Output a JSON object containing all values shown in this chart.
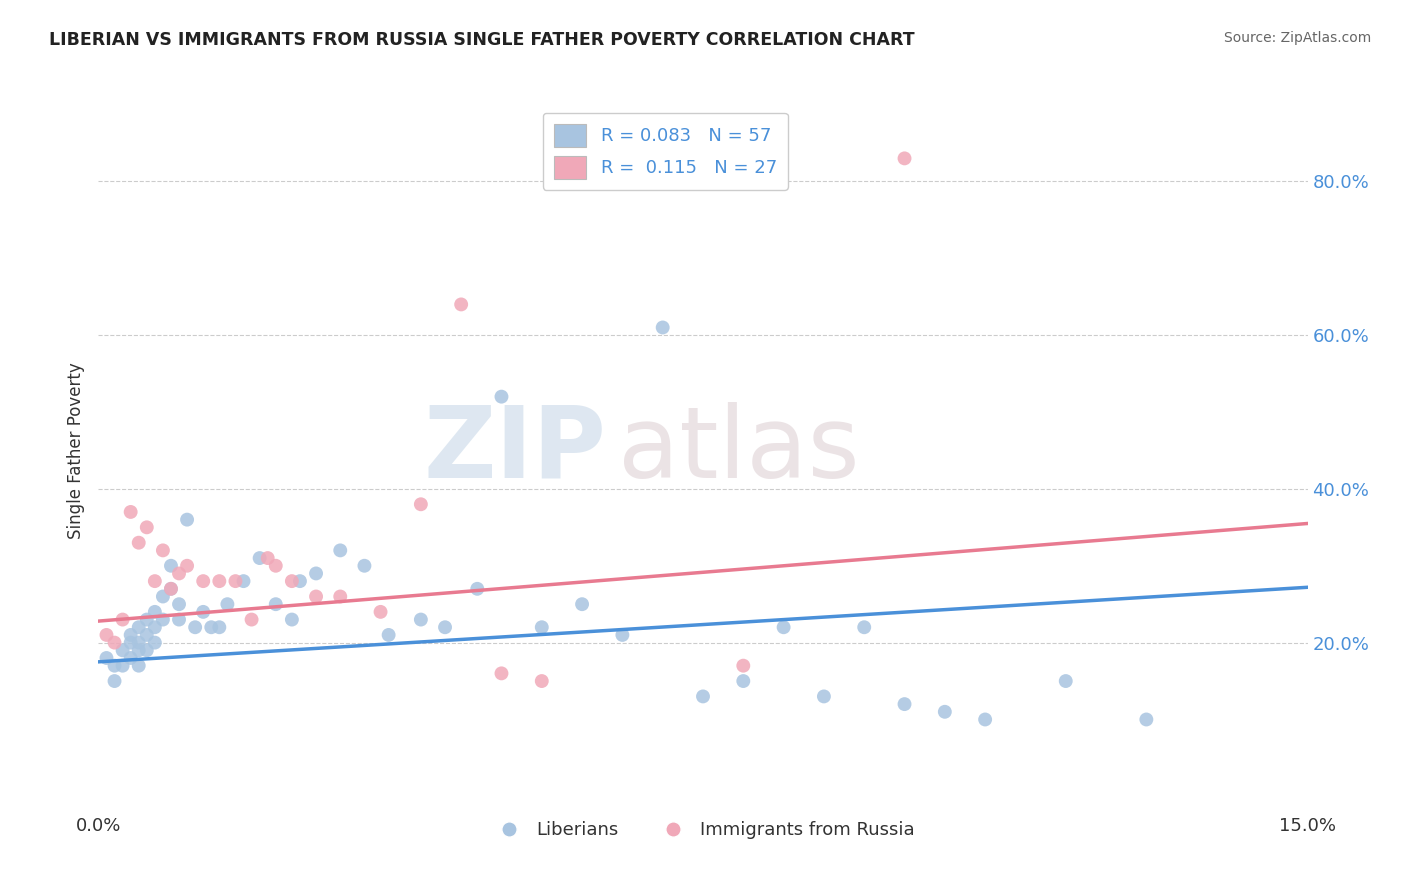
{
  "title": "LIBERIAN VS IMMIGRANTS FROM RUSSIA SINGLE FATHER POVERTY CORRELATION CHART",
  "source": "Source: ZipAtlas.com",
  "ylabel": "Single Father Poverty",
  "xlim": [
    0.0,
    0.15
  ],
  "ylim": [
    -0.02,
    0.92
  ],
  "xtick_labels": [
    "0.0%",
    "15.0%"
  ],
  "xtick_positions": [
    0.0,
    0.15
  ],
  "ytick_labels": [
    "20.0%",
    "40.0%",
    "60.0%",
    "80.0%"
  ],
  "ytick_positions": [
    0.2,
    0.4,
    0.6,
    0.8
  ],
  "blue_color": "#a8c4e0",
  "pink_color": "#f0a8b8",
  "blue_line_color": "#4a90d9",
  "pink_line_color": "#e87a90",
  "watermark_zip": "ZIP",
  "watermark_atlas": "atlas",
  "legend_label1": "Liberians",
  "legend_label2": "Immigrants from Russia",
  "blue_x": [
    0.001,
    0.002,
    0.002,
    0.003,
    0.003,
    0.004,
    0.004,
    0.004,
    0.005,
    0.005,
    0.005,
    0.005,
    0.006,
    0.006,
    0.006,
    0.007,
    0.007,
    0.007,
    0.008,
    0.008,
    0.009,
    0.009,
    0.01,
    0.01,
    0.011,
    0.012,
    0.013,
    0.014,
    0.015,
    0.016,
    0.018,
    0.02,
    0.022,
    0.024,
    0.025,
    0.027,
    0.03,
    0.033,
    0.036,
    0.04,
    0.043,
    0.047,
    0.05,
    0.055,
    0.06,
    0.065,
    0.07,
    0.075,
    0.08,
    0.085,
    0.09,
    0.095,
    0.1,
    0.105,
    0.11,
    0.12,
    0.13
  ],
  "blue_y": [
    0.18,
    0.17,
    0.15,
    0.19,
    0.17,
    0.21,
    0.2,
    0.18,
    0.22,
    0.2,
    0.19,
    0.17,
    0.23,
    0.21,
    0.19,
    0.24,
    0.22,
    0.2,
    0.26,
    0.23,
    0.3,
    0.27,
    0.25,
    0.23,
    0.36,
    0.22,
    0.24,
    0.22,
    0.22,
    0.25,
    0.28,
    0.31,
    0.25,
    0.23,
    0.28,
    0.29,
    0.32,
    0.3,
    0.21,
    0.23,
    0.22,
    0.27,
    0.52,
    0.22,
    0.25,
    0.21,
    0.61,
    0.13,
    0.15,
    0.22,
    0.13,
    0.22,
    0.12,
    0.11,
    0.1,
    0.15,
    0.1
  ],
  "pink_x": [
    0.001,
    0.002,
    0.003,
    0.004,
    0.005,
    0.006,
    0.007,
    0.008,
    0.009,
    0.01,
    0.011,
    0.013,
    0.015,
    0.017,
    0.019,
    0.021,
    0.022,
    0.024,
    0.027,
    0.03,
    0.035,
    0.04,
    0.045,
    0.05,
    0.055,
    0.08,
    0.1
  ],
  "pink_y": [
    0.21,
    0.2,
    0.23,
    0.37,
    0.33,
    0.35,
    0.28,
    0.32,
    0.27,
    0.29,
    0.3,
    0.28,
    0.28,
    0.28,
    0.23,
    0.31,
    0.3,
    0.28,
    0.26,
    0.26,
    0.24,
    0.38,
    0.64,
    0.16,
    0.15,
    0.17,
    0.83
  ],
  "blue_trend_x0": 0.0,
  "blue_trend_y0": 0.175,
  "blue_trend_x1": 0.15,
  "blue_trend_y1": 0.272,
  "pink_trend_x0": 0.0,
  "pink_trend_y0": 0.228,
  "pink_trend_x1": 0.15,
  "pink_trend_y1": 0.355
}
